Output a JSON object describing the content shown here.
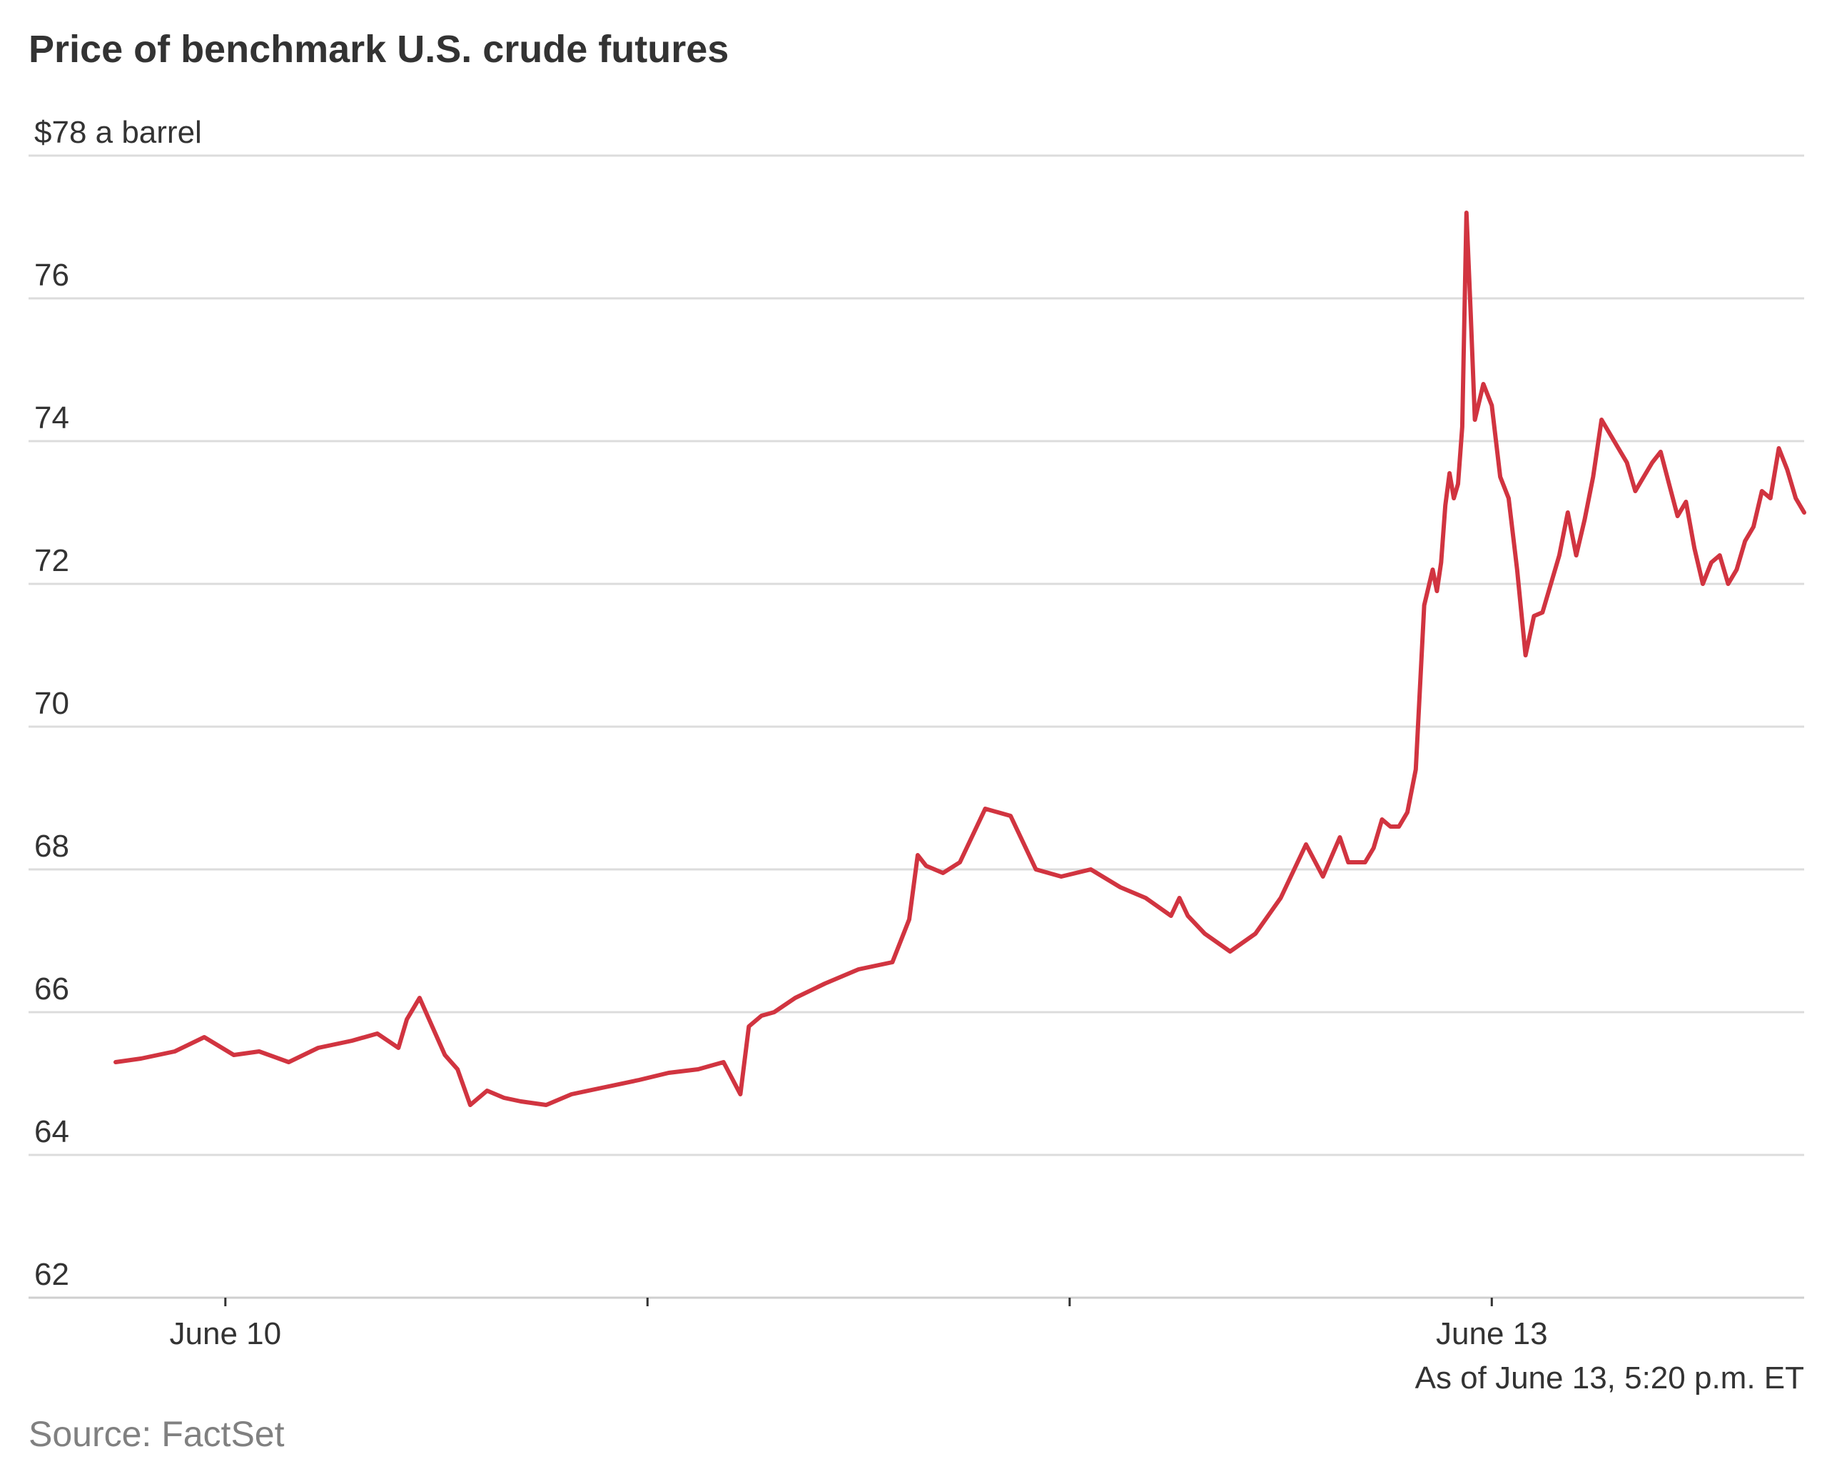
{
  "title": "Price of benchmark U.S. crude futures",
  "source": "Source: FactSet",
  "chart_data": {
    "type": "line",
    "title": "Price of benchmark U.S. crude futures",
    "unit_label": "$78 a barrel",
    "ylim": [
      62,
      78
    ],
    "y_ticks": [
      62,
      64,
      66,
      68,
      70,
      72,
      74,
      76,
      78
    ],
    "y_tick_labels": [
      "62",
      "64",
      "66",
      "68",
      "70",
      "72",
      "74",
      "76",
      "$78 a barrel"
    ],
    "x_ticks": [
      {
        "x": 1,
        "label": "June 10"
      },
      {
        "x": 2,
        "label": ""
      },
      {
        "x": 3,
        "label": ""
      },
      {
        "x": 4,
        "label": "June 13"
      }
    ],
    "xlim": [
      0.74,
      4.74
    ],
    "note": "As of June 13, 5:20 p.m. ET",
    "grid": true,
    "color": "#d13440",
    "series": [
      {
        "name": "",
        "x": [
          0.74,
          0.8,
          0.88,
          0.95,
          1.02,
          1.08,
          1.15,
          1.22,
          1.3,
          1.36,
          1.41,
          1.43,
          1.46,
          1.49,
          1.52,
          1.55,
          1.58,
          1.62,
          1.66,
          1.7,
          1.76,
          1.82,
          1.9,
          1.98,
          2.05,
          2.12,
          2.18,
          2.22,
          2.24,
          2.27,
          2.3,
          2.35,
          2.42,
          2.5,
          2.58,
          2.62,
          2.64,
          2.66,
          2.7,
          2.74,
          2.8,
          2.86,
          2.92,
          2.98,
          3.05,
          3.12,
          3.18,
          3.24,
          3.26,
          3.28,
          3.32,
          3.38,
          3.44,
          3.5,
          3.56,
          3.6,
          3.64,
          3.66,
          3.68,
          3.7,
          3.72,
          3.74,
          3.76,
          3.78,
          3.8,
          3.82,
          3.84,
          3.86,
          3.87,
          3.88,
          3.89,
          3.9,
          3.91,
          3.92,
          3.93,
          3.94,
          3.95,
          3.96,
          3.98,
          4.0,
          4.02,
          4.04,
          4.06,
          4.08,
          4.1,
          4.12,
          4.14,
          4.16,
          4.18,
          4.2,
          4.22,
          4.24,
          4.26,
          4.28,
          4.3,
          4.32,
          4.34,
          4.36,
          4.38,
          4.4,
          4.42,
          4.44,
          4.46,
          4.48,
          4.5,
          4.52,
          4.54,
          4.56,
          4.58,
          4.6,
          4.62,
          4.64,
          4.66,
          4.68,
          4.7,
          4.72,
          4.74
        ],
        "values": [
          65.3,
          65.35,
          65.45,
          65.65,
          65.4,
          65.45,
          65.3,
          65.5,
          65.6,
          65.7,
          65.5,
          65.9,
          66.2,
          65.8,
          65.4,
          65.2,
          64.7,
          64.9,
          64.8,
          64.75,
          64.7,
          64.85,
          64.95,
          65.05,
          65.15,
          65.2,
          65.3,
          64.85,
          65.8,
          65.95,
          66.0,
          66.2,
          66.4,
          66.6,
          66.7,
          67.3,
          68.2,
          68.05,
          67.95,
          68.1,
          68.85,
          68.75,
          68.0,
          67.9,
          68.0,
          67.75,
          67.6,
          67.35,
          67.6,
          67.35,
          67.1,
          66.85,
          67.1,
          67.6,
          68.35,
          67.9,
          68.45,
          68.1,
          68.1,
          68.1,
          68.3,
          68.7,
          68.6,
          68.6,
          68.8,
          69.4,
          71.7,
          72.2,
          71.9,
          72.3,
          73.1,
          73.55,
          73.2,
          73.4,
          74.2,
          77.2,
          75.8,
          74.3,
          74.8,
          74.5,
          73.5,
          73.2,
          72.2,
          71.0,
          71.55,
          71.6,
          72.0,
          72.4,
          73.0,
          72.4,
          72.9,
          73.5,
          74.3,
          74.1,
          73.9,
          73.7,
          73.3,
          73.5,
          73.7,
          73.85,
          73.4,
          72.95,
          73.15,
          72.5,
          72.0,
          72.3,
          72.4,
          72.0,
          72.2,
          72.6,
          72.8,
          73.3,
          73.2,
          73.9,
          73.6,
          73.2,
          73.0
        ]
      }
    ]
  }
}
